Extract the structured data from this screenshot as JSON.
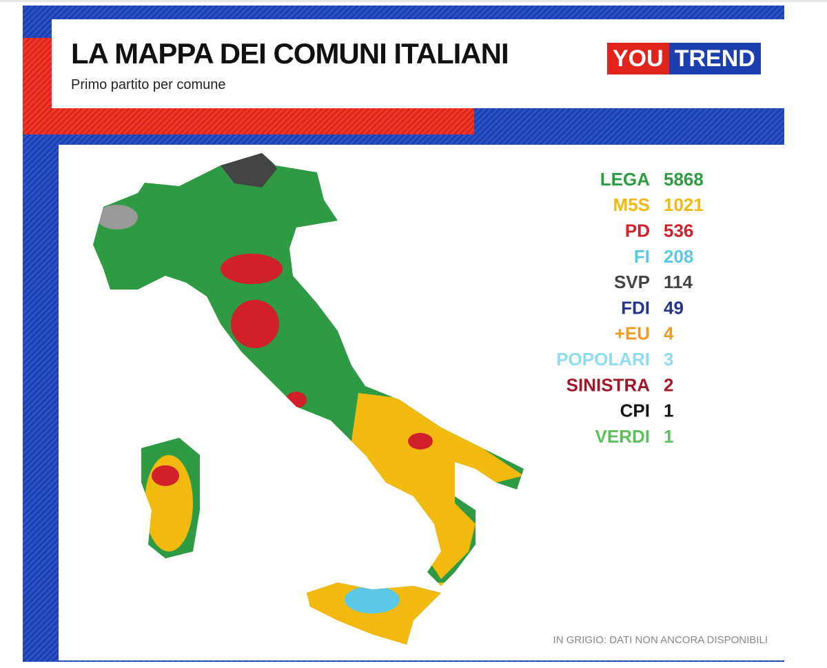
{
  "header": {
    "title": "LA MAPPA DEI COMUNI ITALIANI",
    "subtitle": "Primo partito per comune",
    "brand": [
      "YOU",
      "TREND"
    ]
  },
  "legend": [
    {
      "party": "LEGA",
      "count": "5868",
      "color": "#2e9a44"
    },
    {
      "party": "M5S",
      "count": "1021",
      "color": "#f2b90f"
    },
    {
      "party": "PD",
      "count": "536",
      "color": "#d0202a"
    },
    {
      "party": "FI",
      "count": "208",
      "color": "#5cc8e8"
    },
    {
      "party": "SVP",
      "count": "114",
      "color": "#444444"
    },
    {
      "party": "FDI",
      "count": "49",
      "color": "#27348b"
    },
    {
      "party": "+EU",
      "count": "4",
      "color": "#f29a1f"
    },
    {
      "party": "POPOLARI",
      "count": "3",
      "color": "#8fdcf0"
    },
    {
      "party": "SINISTRA",
      "count": "2",
      "color": "#a0172a"
    },
    {
      "party": "CPI",
      "count": "1",
      "color": "#111111"
    },
    {
      "party": "VERDI",
      "count": "1",
      "color": "#5cbf5c"
    }
  ],
  "note": "IN GRIGIO: DATI NON ANCORA DISPONIBILI"
}
